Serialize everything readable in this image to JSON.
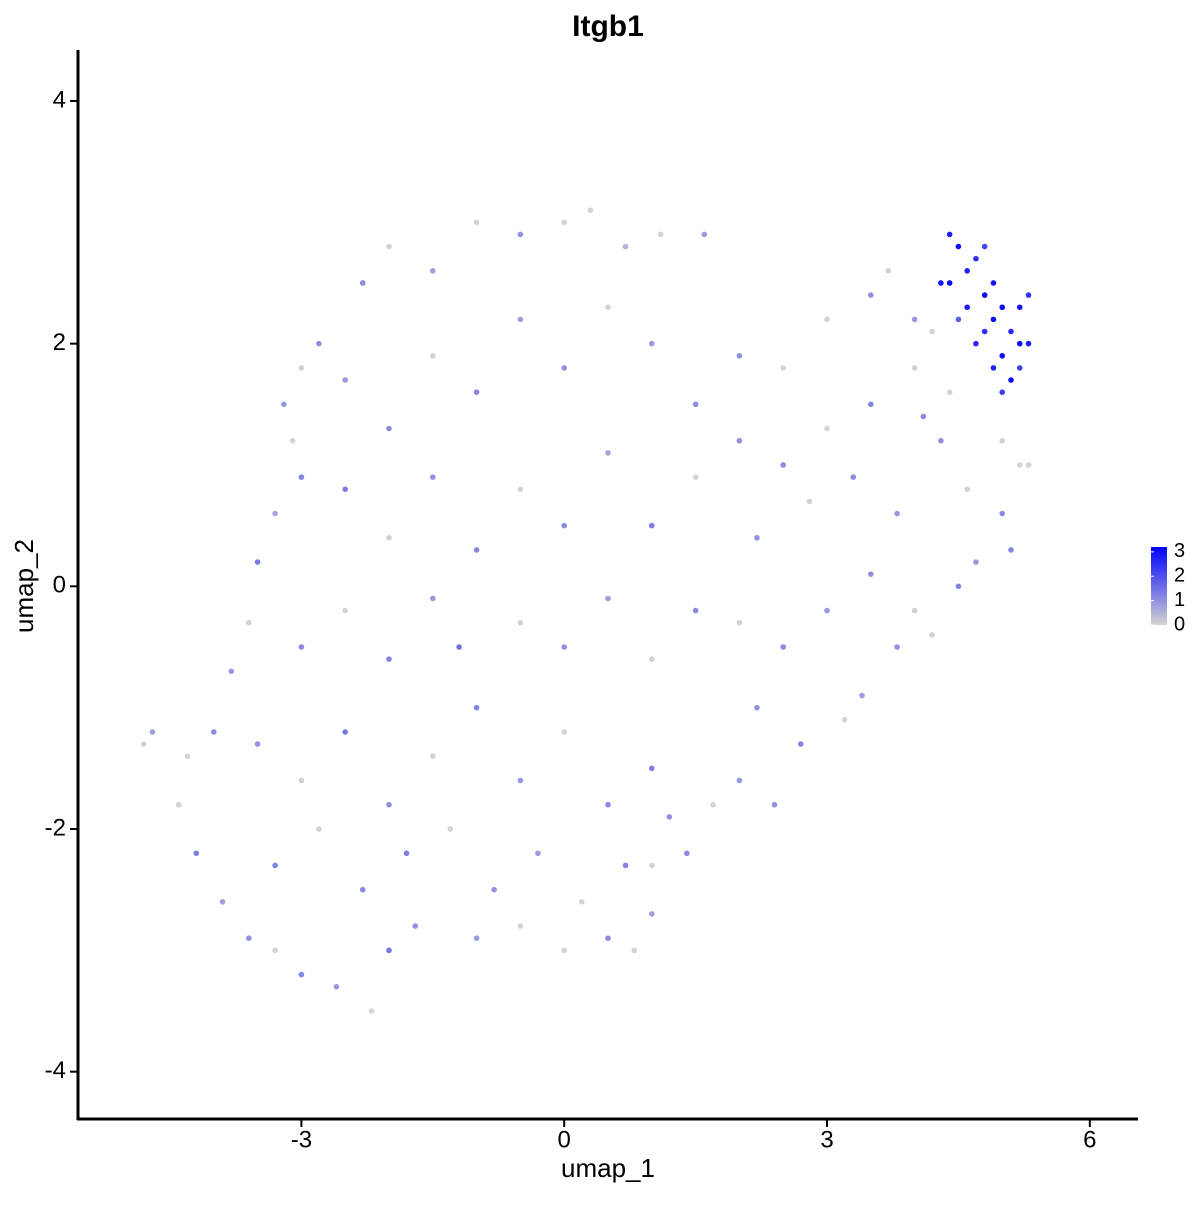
{
  "chart_data": {
    "type": "scatter",
    "title": "Itgb1",
    "x_label": "umap_1",
    "y_label": "umap_2",
    "xlim": [
      -5.55,
      6.55
    ],
    "ylim": [
      -4.39,
      4.42
    ],
    "xticks": [
      -3,
      0,
      3,
      6
    ],
    "yticks": [
      -4,
      -2,
      0,
      2,
      4
    ],
    "color_low": "#d3d3d3",
    "color_high": "#0000ff",
    "clim": [
      0,
      3.2
    ],
    "cticks": [
      0,
      1,
      2,
      3
    ],
    "x": [
      -2.0,
      -1.5,
      -1.0,
      -0.5,
      0.0,
      0.3,
      0.7,
      1.1,
      1.6,
      -2.3,
      -2.8,
      -3.0,
      -3.2,
      -3.1,
      -3.0,
      -3.3,
      -3.5,
      -3.6,
      -3.8,
      -4.0,
      -4.3,
      -4.2,
      -3.9,
      -3.6,
      -3.3,
      -3.0,
      -2.6,
      -2.2,
      -2.0,
      -1.7,
      -4.8,
      -4.7,
      -4.4,
      -2.5,
      -2.0,
      -1.5,
      -1.0,
      -0.5,
      0.0,
      0.5,
      1.0,
      1.5,
      -2.5,
      -2.0,
      -1.5,
      -1.0,
      -0.5,
      0.0,
      0.5,
      1.0,
      1.5,
      2.0,
      -3.0,
      -2.5,
      -2.0,
      -1.5,
      -1.2,
      -0.5,
      0.0,
      0.5,
      1.0,
      1.5,
      -3.5,
      -3.0,
      -2.5,
      -2.0,
      -1.5,
      -1.0,
      -0.5,
      0.0,
      0.5,
      1.0,
      -3.3,
      -2.8,
      -2.3,
      -1.8,
      -1.3,
      -0.8,
      -0.3,
      0.2,
      0.7,
      1.2,
      -1.0,
      -0.5,
      0.0,
      0.5,
      1.0,
      0.8,
      2.5,
      2.0,
      3.0,
      3.5,
      3.7,
      4.0,
      2.5,
      3.0,
      3.5,
      4.0,
      2.2,
      2.8,
      3.3,
      3.8,
      4.3,
      4.6,
      5.0,
      5.2,
      5.1,
      4.7,
      2.0,
      2.5,
      3.0,
      3.5,
      4.0,
      4.5,
      3.4,
      3.2,
      2.7,
      2.2,
      2.0,
      1.7,
      1.4,
      1.0,
      3.8,
      4.2,
      2.4,
      4.2,
      4.4,
      5.0,
      5.3,
      4.1,
      4.4,
      4.5,
      4.6,
      4.7,
      4.8,
      4.9,
      5.0,
      5.1,
      5.2,
      5.3,
      5.3,
      5.2,
      5.0,
      4.9,
      5.1,
      5.0,
      4.8,
      4.6,
      4.4,
      4.3,
      4.7,
      4.8,
      5.2,
      4.5,
      4.9
    ],
    "values": [
      2.8,
      2.6,
      3.0,
      2.9,
      3.0,
      3.1,
      2.8,
      2.9,
      2.9,
      2.5,
      2.0,
      1.8,
      1.5,
      1.2,
      0.9,
      0.6,
      0.2,
      -0.3,
      -0.7,
      -1.2,
      -1.4,
      -2.2,
      -2.6,
      -2.9,
      -3.0,
      -3.2,
      -3.3,
      -3.5,
      -3.0,
      -2.8,
      -1.3,
      -1.2,
      -1.8,
      1.7,
      1.3,
      1.9,
      1.6,
      2.2,
      1.8,
      2.3,
      2.0,
      1.5,
      0.8,
      0.4,
      0.9,
      0.3,
      0.8,
      0.5,
      1.1,
      0.5,
      0.9,
      1.2,
      -0.5,
      -0.2,
      -0.6,
      -0.1,
      -0.5,
      -0.3,
      -0.5,
      -0.1,
      -0.6,
      -0.2,
      -1.3,
      -1.6,
      -1.2,
      -1.8,
      -1.4,
      -1.0,
      -1.6,
      -1.2,
      -1.8,
      -1.5,
      -2.3,
      -2.0,
      -2.5,
      -2.2,
      -2.0,
      -2.5,
      -2.2,
      -2.6,
      -2.3,
      -1.9,
      -2.9,
      -2.8,
      -3.0,
      -2.9,
      -2.7,
      -3.0,
      1.8,
      1.9,
      2.2,
      2.4,
      2.6,
      2.2,
      1.0,
      1.3,
      1.5,
      1.8,
      0.4,
      0.7,
      0.9,
      0.6,
      1.2,
      0.8,
      0.6,
      1.0,
      0.3,
      0.2,
      -0.3,
      -0.5,
      -0.2,
      0.1,
      -0.2,
      0.0,
      -0.9,
      -1.1,
      -1.3,
      -1.0,
      -1.6,
      -1.8,
      -2.2,
      -2.3,
      -0.5,
      -0.4,
      -1.8,
      2.1,
      1.6,
      1.2,
      1.0,
      1.4,
      2.9,
      2.8,
      2.6,
      2.7,
      2.8,
      2.5,
      2.3,
      2.1,
      2.0,
      2.4,
      2.0,
      2.3,
      1.9,
      1.8,
      1.7,
      1.6,
      2.1,
      2.3,
      2.5,
      2.5,
      2.0,
      2.4,
      1.8,
      2.2,
      2.2
    ],
    "color_values": [
      0,
      0.8,
      0,
      1.0,
      0,
      0,
      0.5,
      0,
      0.9,
      1.1,
      1.0,
      0,
      0.9,
      0,
      1.2,
      0.7,
      1.3,
      0,
      0.9,
      1.1,
      0,
      1.3,
      0.8,
      1.0,
      0,
      1.2,
      0.9,
      0,
      1.4,
      1.0,
      0,
      0.8,
      0,
      0.9,
      1.1,
      0,
      1.2,
      0.8,
      1.0,
      0,
      0.9,
      1.1,
      1.3,
      0,
      1.0,
      1.2,
      0,
      1.1,
      0.7,
      1.3,
      0,
      1.0,
      1.1,
      0,
      1.2,
      0.9,
      1.5,
      0,
      1.0,
      0.8,
      0,
      1.1,
      1.0,
      0,
      1.4,
      1.0,
      0,
      1.2,
      0.9,
      0,
      1.1,
      1.3,
      1.2,
      0,
      1.1,
      1.3,
      0,
      1.0,
      0.8,
      0,
      1.2,
      1.0,
      0.9,
      0,
      0,
      1.1,
      0.8,
      0,
      0,
      1.0,
      0,
      1.0,
      0,
      0.9,
      1.1,
      0,
      1.2,
      0,
      1.0,
      0,
      1.1,
      0.9,
      1.0,
      0,
      1.1,
      0,
      1.2,
      0.9,
      0,
      1.1,
      0.9,
      1.0,
      0,
      1.2,
      0.8,
      0,
      1.2,
      1.0,
      0.9,
      0,
      1.1,
      0,
      1.0,
      0,
      1.0,
      0,
      0,
      0,
      0,
      1.1,
      2.8,
      3.0,
      2.7,
      2.5,
      2.2,
      2.9,
      3.1,
      2.6,
      3.0,
      2.4,
      2.8,
      2.9,
      3.0,
      2.7,
      3.1,
      2.3,
      2.5,
      2.8,
      3.1,
      2.9,
      2.6,
      3.0,
      2.2,
      1.8,
      3.0
    ]
  }
}
